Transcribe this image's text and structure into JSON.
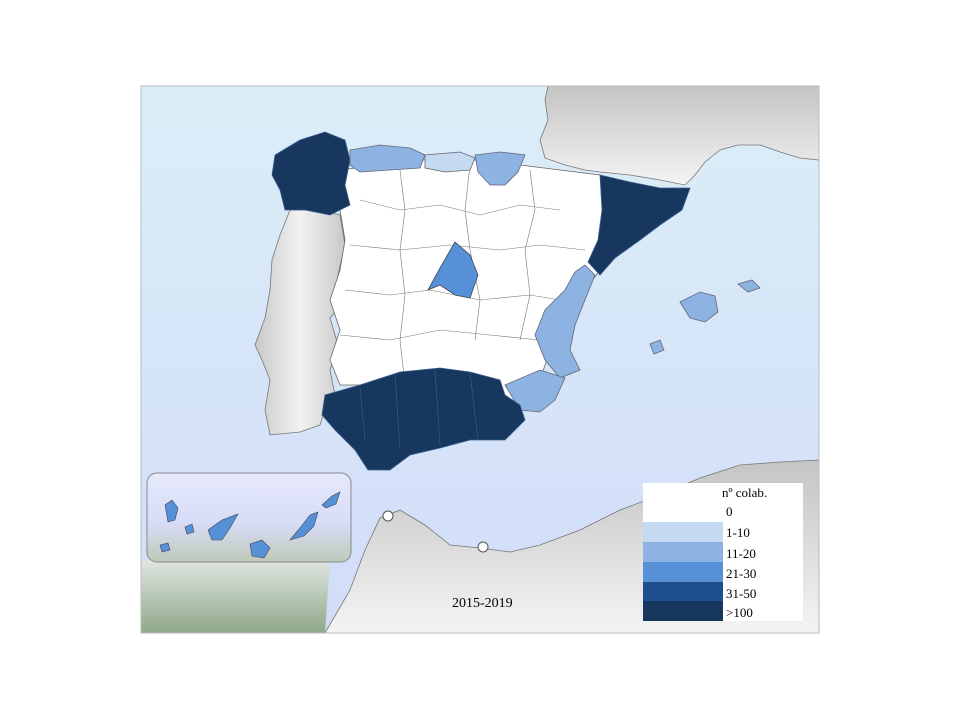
{
  "legend": {
    "title": "nº colab.",
    "items": [
      {
        "label": "0",
        "color": "#ffffff"
      },
      {
        "label": "1-10",
        "color": "#c5d9f1"
      },
      {
        "label": "11-20",
        "color": "#8db3e2"
      },
      {
        "label": "21-30",
        "color": "#5690d6"
      },
      {
        "label": "31-50",
        "color": "#1f4e8c"
      },
      {
        "label": ">100",
        "color": "#17375e"
      }
    ]
  },
  "period_label": "2015-2019",
  "colors": {
    "sea_top": "#dcecf6",
    "sea_bottom": "#d0ddf7",
    "land_grey": "#d9d9d9",
    "border": "#555555"
  },
  "regions": [
    {
      "name": "Galicia",
      "class": ">100"
    },
    {
      "name": "Asturias",
      "class": "11-20"
    },
    {
      "name": "Cantabria",
      "class": "1-10"
    },
    {
      "name": "País Vasco",
      "class": "11-20"
    },
    {
      "name": "Cataluña",
      "class": ">100"
    },
    {
      "name": "Madrid",
      "class": "21-30"
    },
    {
      "name": "Comunidad Valenciana",
      "class": "11-20"
    },
    {
      "name": "Murcia",
      "class": "11-20"
    },
    {
      "name": "Andalucía",
      "class": ">100"
    },
    {
      "name": "Baleares",
      "class": "11-20"
    },
    {
      "name": "Canarias",
      "class": "21-30"
    }
  ]
}
